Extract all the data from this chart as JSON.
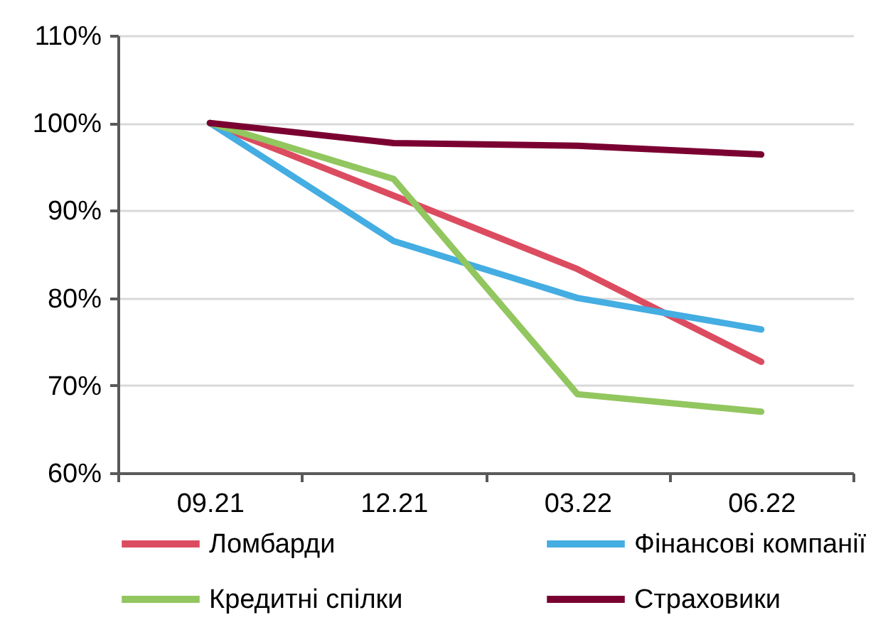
{
  "chart_data": {
    "type": "line",
    "categories": [
      "09.21",
      "12.21",
      "03.22",
      "06.22"
    ],
    "series": [
      {
        "name": "Ломбарди",
        "color": "#dc4c60",
        "values": [
          100,
          91.7,
          83.3,
          72.7
        ]
      },
      {
        "name": "Фінансові компанії",
        "color": "#44ade2",
        "values": [
          100,
          86.5,
          80.0,
          76.4
        ]
      },
      {
        "name": "Кредитні спілки",
        "color": "#92c65f",
        "values": [
          100,
          93.6,
          69.0,
          67.0
        ]
      },
      {
        "name": "Страховики",
        "color": "#7a0031",
        "values": [
          100,
          97.7,
          97.4,
          96.4
        ]
      }
    ],
    "ylim": [
      60,
      110
    ],
    "yticks": [
      {
        "value": 60,
        "label": "60%"
      },
      {
        "value": 70,
        "label": "70%"
      },
      {
        "value": 80,
        "label": "80%"
      },
      {
        "value": 90,
        "label": "90%"
      },
      {
        "value": 100,
        "label": "100%"
      },
      {
        "value": 110,
        "label": "110%"
      }
    ],
    "grid": "y",
    "legend": "bottom",
    "line_style": "solid"
  }
}
